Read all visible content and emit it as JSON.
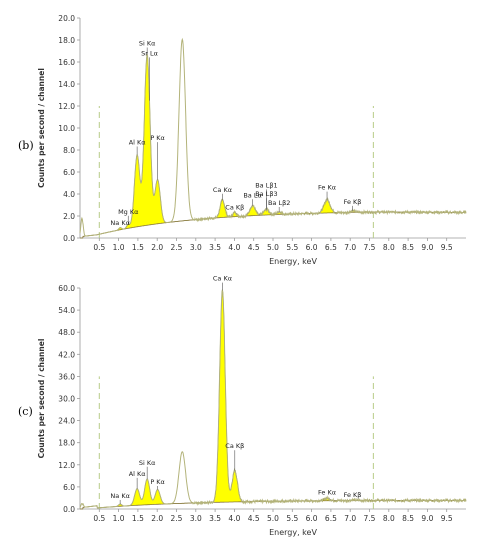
{
  "chart_data": [
    {
      "type": "area",
      "panel_label": "(b)",
      "xlabel": "Energy, keV",
      "ylabel": "Counts per second / channel",
      "xlim": [
        0,
        10
      ],
      "ylim": [
        0,
        20
      ],
      "x_ticks": [
        0.5,
        1.0,
        1.5,
        2.0,
        2.5,
        3.0,
        3.5,
        4.0,
        4.5,
        5.0,
        5.5,
        6.0,
        6.5,
        7.0,
        7.5,
        8.0,
        8.5,
        9.0,
        9.5
      ],
      "x_tick_labels": [
        "0.5",
        "1.0",
        "1.5",
        "2.0",
        "2.5",
        "3.0",
        "3.5",
        "4.0",
        "4.5",
        "5.0",
        "5.5",
        "6.0",
        "6.5",
        "7.0",
        "7.5",
        "8.0",
        "8.5",
        "9.0",
        "9.5"
      ],
      "y_ticks": [
        0,
        2,
        4,
        6,
        8,
        10,
        12,
        14,
        16,
        18,
        20
      ],
      "y_tick_labels": [
        "0.0",
        "2.0",
        "4.0",
        "6.0",
        "8.0",
        "10.0",
        "12.0",
        "14.0",
        "16.0",
        "18.0",
        "20.0"
      ],
      "grid": false,
      "region_markers_x": [
        0.5,
        7.6
      ],
      "colors": {
        "spectrum": "#b3b37a",
        "fill": "#ffff00",
        "fill_edge": "#6b6b3a",
        "axis": "#9a9a9a",
        "marker": "#b8cc88"
      },
      "background_start": 0.6,
      "background_end": 2.0,
      "fitted_peaks": [
        {
          "center": 1.04,
          "height": 0.2,
          "width": 0.035
        },
        {
          "center": 1.25,
          "height": 0.35,
          "width": 0.04
        },
        {
          "center": 1.48,
          "height": 6.5,
          "width": 0.07
        },
        {
          "center": 1.74,
          "height": 15.5,
          "width": 0.075
        },
        {
          "center": 2.01,
          "height": 4.0,
          "width": 0.07
        },
        {
          "center": 3.69,
          "height": 1.6,
          "width": 0.06
        },
        {
          "center": 4.01,
          "height": 0.4,
          "width": 0.05
        },
        {
          "center": 4.47,
          "height": 0.9,
          "width": 0.07
        },
        {
          "center": 4.83,
          "height": 0.5,
          "width": 0.07
        },
        {
          "center": 5.16,
          "height": 0.25,
          "width": 0.06
        },
        {
          "center": 6.4,
          "height": 1.2,
          "width": 0.08
        },
        {
          "center": 7.06,
          "height": 0.15,
          "width": 0.06
        }
      ],
      "extra_peaks": [
        {
          "center": 0.05,
          "height": 1.8,
          "width": 0.03
        },
        {
          "center": 2.65,
          "height": 16.5,
          "width": 0.085
        }
      ],
      "annotations": [
        {
          "text": "Si Kα",
          "x": 1.74,
          "y": 17.5
        },
        {
          "text": "Sr Lα",
          "x": 1.8,
          "y": 16.6
        },
        {
          "text": "Al Kα",
          "x": 1.48,
          "y": 8.5
        },
        {
          "text": "P Kα",
          "x": 2.01,
          "y": 8.9
        },
        {
          "text": "Mg Kα",
          "x": 1.25,
          "y": 2.2
        },
        {
          "text": "Na Kα",
          "x": 1.04,
          "y": 1.2
        },
        {
          "text": "Ca Kα",
          "x": 3.69,
          "y": 4.2
        },
        {
          "text": "Ca Kβ",
          "x": 4.01,
          "y": 2.6
        },
        {
          "text": "Ba Lα",
          "x": 4.47,
          "y": 3.7
        },
        {
          "text": "Ba Lβ1",
          "x": 4.83,
          "y": 4.6
        },
        {
          "text": "Ba Lβ3",
          "x": 4.83,
          "y": 3.8
        },
        {
          "text": "Ba Lβ2",
          "x": 5.16,
          "y": 3.0
        },
        {
          "text": "Fe Kα",
          "x": 6.4,
          "y": 4.4
        },
        {
          "text": "Fe Kβ",
          "x": 7.06,
          "y": 3.1
        }
      ]
    },
    {
      "type": "area",
      "panel_label": "(c)",
      "xlabel": "Energy, keV",
      "ylabel": "Counts per second / channel",
      "xlim": [
        0,
        10
      ],
      "ylim": [
        0,
        60
      ],
      "x_ticks": [
        0.5,
        1.0,
        1.5,
        2.0,
        2.5,
        3.0,
        3.5,
        4.0,
        4.5,
        5.0,
        5.5,
        6.0,
        6.5,
        7.0,
        7.5,
        8.0,
        8.5,
        9.0,
        9.5
      ],
      "x_tick_labels": [
        "0.5",
        "1.0",
        "1.5",
        "2.0",
        "2.5",
        "3.0",
        "3.5",
        "4.0",
        "4.5",
        "5.0",
        "5.5",
        "6.0",
        "6.5",
        "7.0",
        "7.5",
        "8.0",
        "8.5",
        "9.0",
        "9.5"
      ],
      "y_ticks": [
        0,
        6,
        12,
        18,
        24,
        30,
        36,
        42,
        48,
        54,
        60
      ],
      "y_tick_labels": [
        "0.0",
        "6.0",
        "12.0",
        "18.0",
        "24.0",
        "30.0",
        "36.0",
        "42.0",
        "48.0",
        "54.0",
        "60.0"
      ],
      "grid": false,
      "region_markers_x": [
        0.5,
        7.6
      ],
      "colors": {
        "spectrum": "#b3b37a",
        "fill": "#ffff00",
        "fill_edge": "#6b6b3a",
        "axis": "#9a9a9a",
        "marker": "#b8cc88"
      },
      "background_start": 0.6,
      "background_end": 1.2,
      "fitted_peaks": [
        {
          "center": 1.04,
          "height": 0.6,
          "width": 0.04
        },
        {
          "center": 1.48,
          "height": 4.5,
          "width": 0.065
        },
        {
          "center": 1.74,
          "height": 7.0,
          "width": 0.065
        },
        {
          "center": 2.01,
          "height": 4.0,
          "width": 0.065
        },
        {
          "center": 3.69,
          "height": 57.5,
          "width": 0.072
        },
        {
          "center": 4.01,
          "height": 8.5,
          "width": 0.07
        },
        {
          "center": 6.4,
          "height": 0.7,
          "width": 0.07
        },
        {
          "center": 7.06,
          "height": 0.15,
          "width": 0.06
        }
      ],
      "extra_peaks": [
        {
          "center": 0.05,
          "height": 1.5,
          "width": 0.03
        },
        {
          "center": 2.65,
          "height": 14.0,
          "width": 0.085
        }
      ],
      "annotations": [
        {
          "text": "Ca Kα",
          "x": 3.69,
          "y": 62.0
        },
        {
          "text": "Ca Kβ",
          "x": 4.01,
          "y": 16.5
        },
        {
          "text": "Al Kα",
          "x": 1.48,
          "y": 9.0
        },
        {
          "text": "Si Kα",
          "x": 1.74,
          "y": 12.0
        },
        {
          "text": "P Kα",
          "x": 2.01,
          "y": 6.8
        },
        {
          "text": "Na Kα",
          "x": 1.04,
          "y": 3.0
        },
        {
          "text": "Fe Kα",
          "x": 6.4,
          "y": 4.0
        },
        {
          "text": "Fe Kβ",
          "x": 7.06,
          "y": 3.3
        }
      ]
    }
  ]
}
